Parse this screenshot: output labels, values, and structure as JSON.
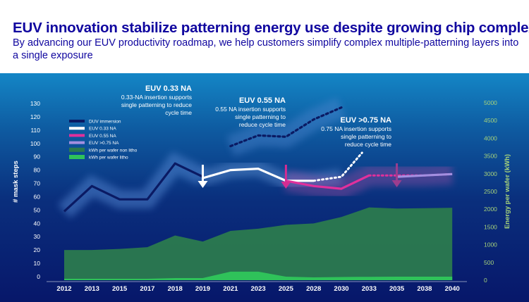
{
  "header": {
    "title": "EUV innovation stabilize patterning energy use despite growing chip complexity",
    "subtitle": "By advancing our EUV productivity roadmap, we help customers simplify complex multiple-patterning layers into a single exposure"
  },
  "chart_data": {
    "type": "line",
    "categories": [
      "2012",
      "2013",
      "2015",
      "2017",
      "2018",
      "2019",
      "2021",
      "2023",
      "2025",
      "2028",
      "2030",
      "2033",
      "2035",
      "2038",
      "2040"
    ],
    "ylabel": "# mask steps",
    "ylim": [
      0,
      130
    ],
    "yticks": [
      0,
      10,
      20,
      30,
      40,
      50,
      60,
      70,
      80,
      90,
      100,
      110,
      120,
      130
    ],
    "y2label": "Energy per wafer (kWh)",
    "y2lim": [
      0,
      5000
    ],
    "y2ticks": [
      0,
      500,
      1000,
      1500,
      2000,
      2500,
      3000,
      3500,
      4000,
      4500,
      5000
    ],
    "legend_position": "top-left",
    "series": [
      {
        "name": "DUV  immersion",
        "axis": "left",
        "kind": "line",
        "color": "#0a1a63",
        "values": [
          49,
          68,
          58,
          58,
          85,
          75,
          null,
          null,
          null,
          null,
          null,
          null,
          null,
          null,
          null
        ],
        "projection": [
          null,
          null,
          null,
          null,
          null,
          null,
          98,
          106,
          105,
          118,
          127,
          null,
          null,
          null,
          null
        ]
      },
      {
        "name": "EUV 0.33 NA",
        "axis": "left",
        "kind": "line",
        "color": "#ffffff",
        "values": [
          null,
          null,
          null,
          null,
          null,
          74,
          80,
          81,
          72,
          72,
          75,
          null,
          null,
          null,
          null
        ]
      },
      {
        "name": "EUV 0.55 NA",
        "axis": "left",
        "kind": "line",
        "color": "#e0309c",
        "values": [
          null,
          null,
          null,
          null,
          null,
          null,
          null,
          null,
          72,
          68,
          66,
          76,
          76,
          76,
          77
        ]
      },
      {
        "name": "EUV >0.75 NA",
        "axis": "left",
        "kind": "line",
        "color": "#a38fe0",
        "values": [
          null,
          null,
          null,
          null,
          null,
          null,
          null,
          null,
          null,
          null,
          null,
          null,
          75,
          76,
          77
        ]
      },
      {
        "name": "kWh per wafer non litho",
        "axis": "right",
        "kind": "area",
        "color": "#2b7a4e",
        "values": [
          850,
          850,
          880,
          930,
          1260,
          1090,
          1390,
          1450,
          1560,
          1600,
          1780,
          2050,
          2020,
          2030,
          2040
        ]
      },
      {
        "name": "kWh per wafer litho",
        "axis": "right",
        "kind": "area",
        "color": "#2fc25a",
        "values": [
          40,
          40,
          40,
          40,
          60,
          60,
          240,
          240,
          100,
          80,
          90,
          95,
          100,
          100,
          100
        ]
      }
    ],
    "annotations": [
      {
        "id": "euv033",
        "title": "EUV 0.33 NA",
        "text": [
          "0.33-NA insertion supports",
          "single patterning to reduce",
          "cycle time"
        ],
        "year": "2019"
      },
      {
        "id": "euv055",
        "title": "EUV 0.55 NA",
        "text": [
          "0.55 NA insertion supports",
          "single patterning to",
          "reduce cycle time"
        ],
        "year": "2025"
      },
      {
        "id": "euv075",
        "title": "EUV >0.75 NA",
        "text": [
          "0.75 NA insertion supports",
          "single patterning to",
          "reduce cycle time"
        ],
        "year": "2035"
      }
    ]
  }
}
